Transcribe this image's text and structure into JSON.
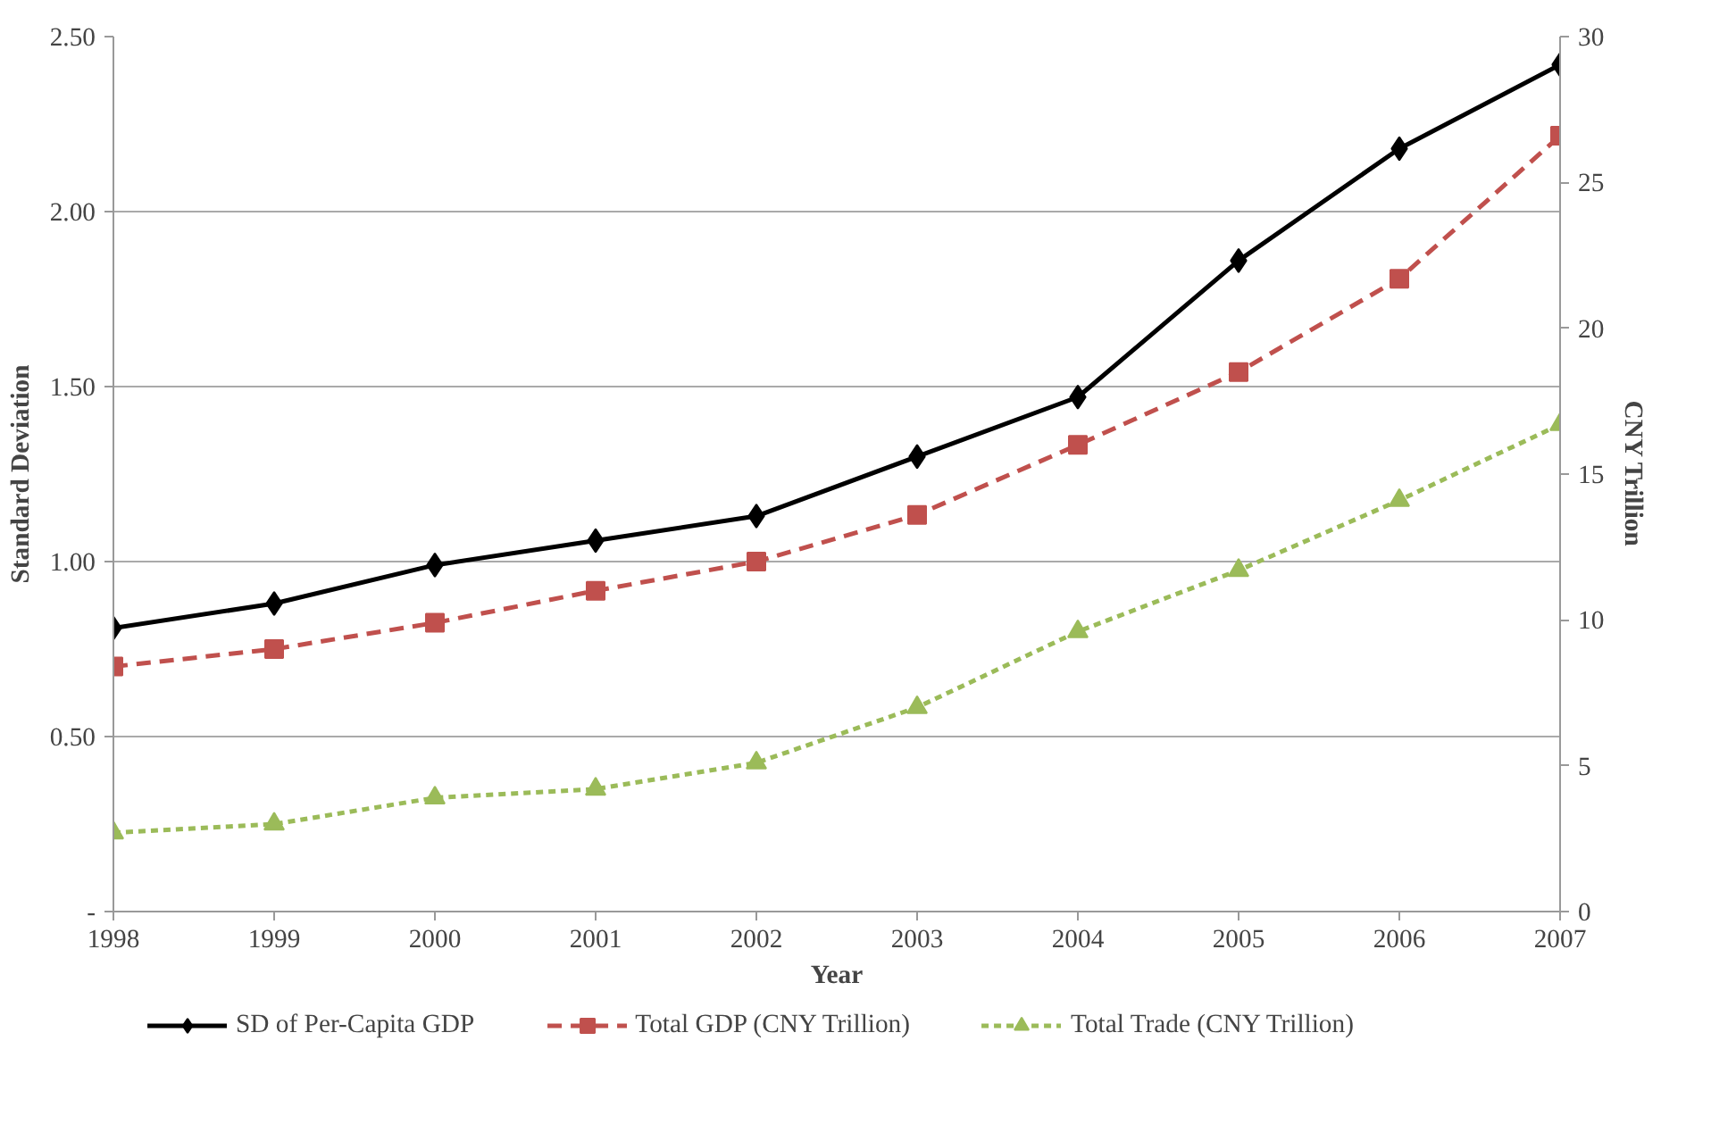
{
  "chart_data": {
    "type": "line",
    "xlabel": "Year",
    "ylabel": "Standard Deviation",
    "y2label": "CNY Trillion",
    "x": [
      1998,
      1999,
      2000,
      2001,
      2002,
      2003,
      2004,
      2005,
      2006,
      2007
    ],
    "xlim": [
      1998,
      2007
    ],
    "xticks": [
      1998,
      1999,
      2000,
      2001,
      2002,
      2003,
      2004,
      2005,
      2006,
      2007
    ],
    "ylim": [
      0,
      2.5
    ],
    "yticks": [
      {
        "value": 0,
        "label": "-"
      },
      {
        "value": 0.5,
        "label": "0.50"
      },
      {
        "value": 1.0,
        "label": "1.00"
      },
      {
        "value": 1.5,
        "label": "1.50"
      },
      {
        "value": 2.0,
        "label": "2.00"
      },
      {
        "value": 2.5,
        "label": "2.50"
      }
    ],
    "y2lim": [
      0,
      30
    ],
    "y2ticks": [
      0,
      5,
      10,
      15,
      20,
      25,
      30
    ],
    "grid": "y",
    "legend": "bottom",
    "series": [
      {
        "name": "SD of Per-Capita GDP",
        "color": "#000000",
        "marker": "diamond",
        "line_style": "solid",
        "values": [
          0.81,
          0.88,
          0.99,
          1.06,
          1.13,
          1.3,
          1.47,
          1.86,
          2.18,
          2.42
        ]
      },
      {
        "name": "Total GDP (CNY Trillion)",
        "color": "#c0504d",
        "marker": "square",
        "line_style": "dashed",
        "axis": "y2",
        "values": [
          8.4,
          9.0,
          9.9,
          11.0,
          12.0,
          13.6,
          16.0,
          18.5,
          21.7,
          26.6
        ]
      },
      {
        "name": "Total Trade (CNY Trillion)",
        "color": "#9bbb59",
        "marker": "triangle",
        "line_style": "dotted",
        "axis": "y2",
        "values": [
          2.7,
          3.0,
          3.9,
          4.2,
          5.1,
          7.0,
          9.6,
          11.7,
          14.1,
          16.7
        ]
      }
    ]
  }
}
